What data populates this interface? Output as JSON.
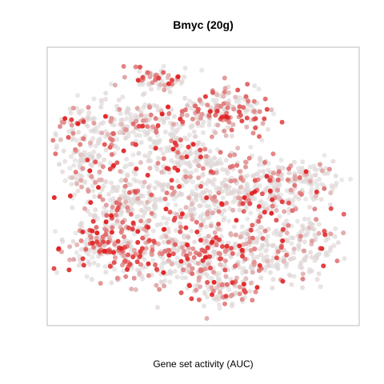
{
  "chart_data": {
    "type": "scatter",
    "title": "Bmyc (20g)",
    "xlabel": "",
    "ylabel": "",
    "caption": "Gene set activity (AUC)",
    "axes_visible": false,
    "grid": false,
    "color_scale": {
      "low": "#e0e0e0",
      "high": "#e31a1c"
    },
    "regions": [
      {
        "x": 3.2,
        "y": 8.6,
        "sx": 0.45,
        "sy": 0.25,
        "n": 70,
        "hot": 0.55
      },
      {
        "x": 5.4,
        "y": 7.5,
        "sx": 0.85,
        "sy": 0.45,
        "n": 180,
        "hot": 0.6
      },
      {
        "x": 2.8,
        "y": 7.0,
        "sx": 0.9,
        "sy": 0.5,
        "n": 150,
        "hot": 0.3
      },
      {
        "x": 0.9,
        "y": 6.0,
        "sx": 0.55,
        "sy": 0.9,
        "n": 180,
        "hot": 0.35
      },
      {
        "x": 4.2,
        "y": 5.8,
        "sx": 0.9,
        "sy": 0.4,
        "n": 170,
        "hot": 0.15
      },
      {
        "x": 2.3,
        "y": 4.2,
        "sx": 0.8,
        "sy": 0.7,
        "n": 200,
        "hot": 0.35
      },
      {
        "x": 4.5,
        "y": 4.3,
        "sx": 0.9,
        "sy": 0.6,
        "n": 190,
        "hot": 0.3
      },
      {
        "x": 6.6,
        "y": 4.6,
        "sx": 0.9,
        "sy": 0.6,
        "n": 190,
        "hot": 0.4
      },
      {
        "x": 8.2,
        "y": 4.8,
        "sx": 0.5,
        "sy": 0.5,
        "n": 90,
        "hot": 0.3
      },
      {
        "x": 1.7,
        "y": 2.4,
        "sx": 0.8,
        "sy": 0.65,
        "n": 210,
        "hot": 0.55
      },
      {
        "x": 4.0,
        "y": 2.1,
        "sx": 0.9,
        "sy": 0.55,
        "n": 210,
        "hot": 0.45
      },
      {
        "x": 6.3,
        "y": 2.4,
        "sx": 0.9,
        "sy": 0.55,
        "n": 200,
        "hot": 0.35
      },
      {
        "x": 8.0,
        "y": 2.5,
        "sx": 0.55,
        "sy": 0.6,
        "n": 110,
        "hot": 0.2
      },
      {
        "x": 5.5,
        "y": 0.9,
        "sx": 0.55,
        "sy": 0.35,
        "n": 90,
        "hot": 0.35
      }
    ],
    "xlim": [
      -0.3,
      9.7
    ],
    "ylim": [
      -0.3,
      9.7
    ]
  }
}
